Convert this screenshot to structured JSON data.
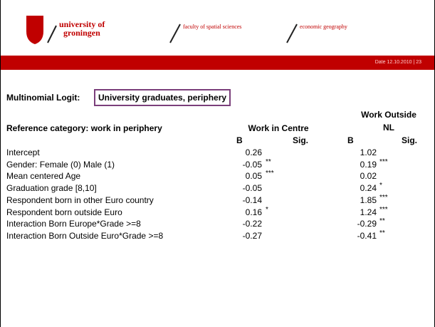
{
  "header": {
    "logo": [
      "university of",
      "groningen"
    ],
    "faculty": "faculty of spatial sciences",
    "department": "economic geography",
    "date": "Date 12.10.2010 | 23"
  },
  "title": {
    "prefix": "Multinomial Logit:",
    "highlight": "University graduates, periphery"
  },
  "table": {
    "reference": "Reference category: work in periphery",
    "groups": [
      "Work in Centre",
      [
        "Work Outside",
        "NL"
      ]
    ],
    "subheaders": [
      "B",
      "Sig.",
      "B",
      "Sig."
    ],
    "rows": [
      [
        "Intercept",
        "0.26",
        "",
        "1.02",
        ""
      ],
      [
        "Gender: Female (0) Male (1)",
        "-0.05",
        "**",
        "0.19",
        "***"
      ],
      [
        "Mean centered Age",
        "0.05",
        "***",
        "0.02",
        ""
      ],
      [
        "Graduation grade [8,10]",
        "-0.05",
        "",
        "0.24",
        "*"
      ],
      [
        "Respondent born in other Euro country",
        "-0.14",
        "",
        "1.85",
        "***"
      ],
      [
        "Respondent born outside Euro",
        "0.16",
        "*",
        "1.24",
        "***"
      ],
      [
        "Interaction Born Europe*Grade >=8",
        "-0.22",
        "",
        "-0.29",
        "**"
      ],
      [
        "Interaction Born Outside Euro*Grade >=8",
        "-0.27",
        "",
        "-0.41",
        "**"
      ]
    ]
  }
}
